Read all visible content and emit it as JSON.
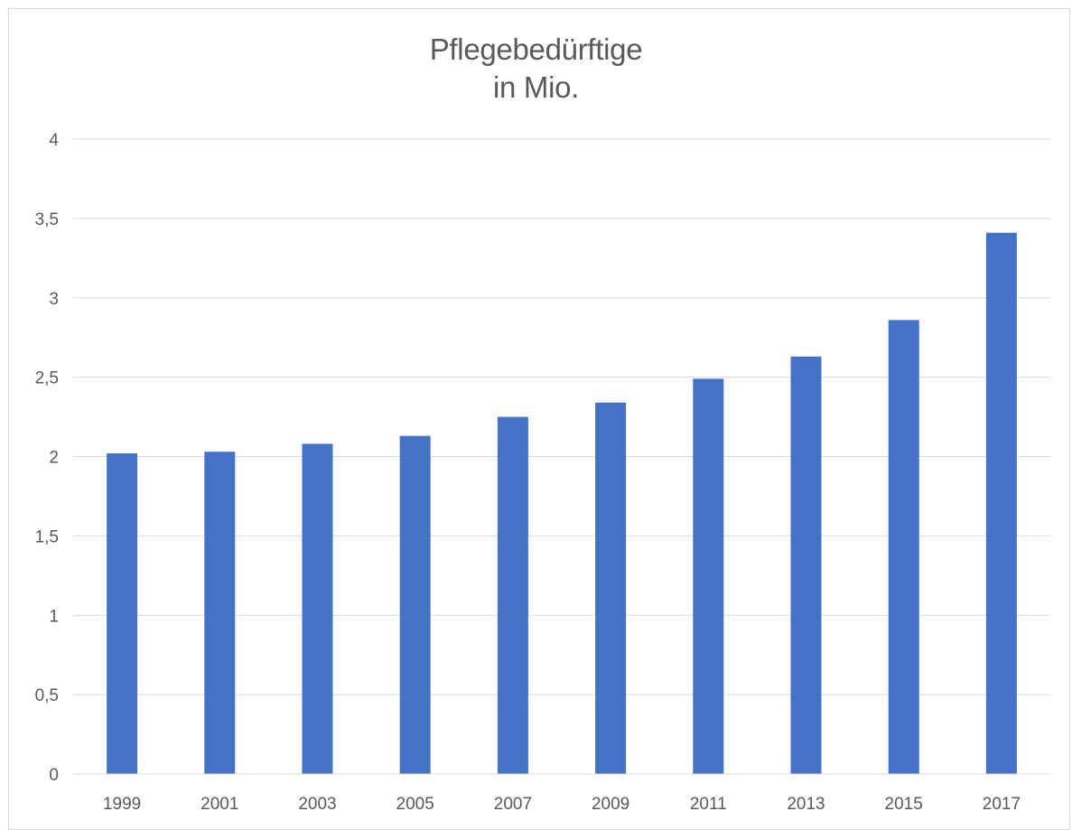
{
  "chart_data": {
    "type": "bar",
    "title": [
      "Pflegebedürftige",
      "in Mio."
    ],
    "categories": [
      "1999",
      "2001",
      "2003",
      "2005",
      "2007",
      "2009",
      "2011",
      "2013",
      "2015",
      "2017"
    ],
    "series": [
      {
        "values": [
          2.02,
          2.03,
          2.08,
          2.13,
          2.25,
          2.34,
          2.49,
          2.63,
          2.86,
          3.41
        ],
        "color": "#4472c4"
      }
    ],
    "ylim": [
      0,
      4
    ],
    "yticks": [
      "0",
      "0,5",
      "1",
      "1,5",
      "2",
      "2,5",
      "3",
      "3,5",
      "4"
    ],
    "grid": true,
    "legend": "none"
  }
}
